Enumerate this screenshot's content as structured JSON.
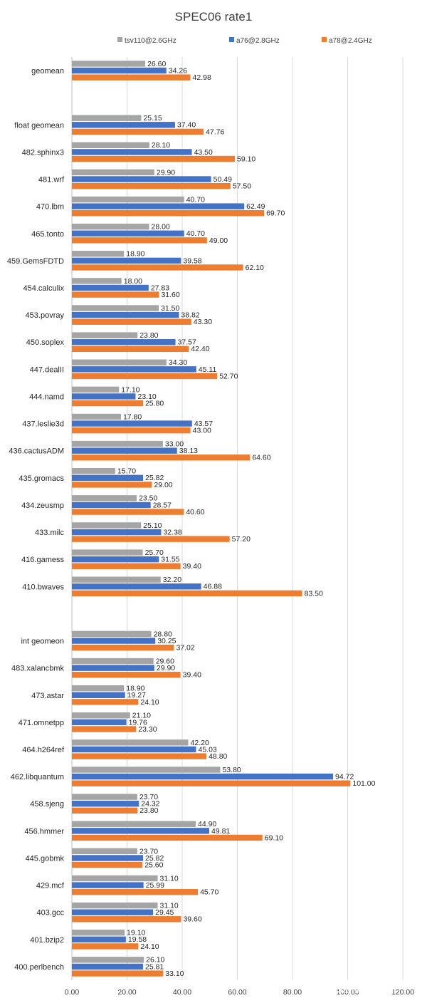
{
  "chart_data": {
    "type": "bar",
    "orientation": "horizontal",
    "title": "SPEC06 rate1",
    "xlim": [
      0,
      120
    ],
    "xticks": [
      "0.00",
      "20.00",
      "40.00",
      "60.00",
      "80.00",
      "100.00",
      "120.00"
    ],
    "legend_position": "top",
    "grid": true,
    "series": [
      {
        "name": "tsv110@2.6GHz",
        "color": "#a5a5a5"
      },
      {
        "name": "a76@2.8GHz",
        "color": "#4472c4"
      },
      {
        "name": "a78@2.4GHz",
        "color": "#ed7d31"
      }
    ],
    "categories": [
      {
        "name": "geomean",
        "values": [
          "26.60",
          "34.26",
          "42.98"
        ]
      },
      {
        "name": "",
        "values": []
      },
      {
        "name": "float geomean",
        "values": [
          "25.15",
          "37.40",
          "47.76"
        ]
      },
      {
        "name": "482.sphinx3",
        "values": [
          "28.10",
          "43.50",
          "59.10"
        ]
      },
      {
        "name": "481.wrf",
        "values": [
          "29.90",
          "50.49",
          "57.50"
        ]
      },
      {
        "name": "470.lbm",
        "values": [
          "40.70",
          "62.49",
          "69.70"
        ]
      },
      {
        "name": "465.tonto",
        "values": [
          "28.00",
          "40.70",
          "49.00"
        ]
      },
      {
        "name": "459.GemsFDTD",
        "values": [
          "18.90",
          "39.58",
          "62.10"
        ]
      },
      {
        "name": "454.calculix",
        "values": [
          "18.00",
          "27.83",
          "31.60"
        ]
      },
      {
        "name": "453.povray",
        "values": [
          "31.50",
          "38.82",
          "43.30"
        ]
      },
      {
        "name": "450.soplex",
        "values": [
          "23.80",
          "37.57",
          "42.40"
        ]
      },
      {
        "name": "447.dealII",
        "values": [
          "34.30",
          "45.11",
          "52.70"
        ]
      },
      {
        "name": "444.namd",
        "values": [
          "17.10",
          "23.10",
          "25.80"
        ]
      },
      {
        "name": "437.leslie3d",
        "values": [
          "17.80",
          "43.57",
          "43.00"
        ]
      },
      {
        "name": "436.cactusADM",
        "values": [
          "33.00",
          "38.13",
          "64.60"
        ]
      },
      {
        "name": "435.gromacs",
        "values": [
          "15.70",
          "25.82",
          "29.00"
        ]
      },
      {
        "name": "434.zeusmp",
        "values": [
          "23.50",
          "28.57",
          "40.60"
        ]
      },
      {
        "name": "433.milc",
        "values": [
          "25.10",
          "32.38",
          "57.20"
        ]
      },
      {
        "name": "416.gamess",
        "values": [
          "25.70",
          "31.55",
          "39.40"
        ]
      },
      {
        "name": "410.bwaves",
        "values": [
          "32.20",
          "46.88",
          "83.50"
        ]
      },
      {
        "name": "",
        "values": []
      },
      {
        "name": "int geomeon",
        "values": [
          "28.80",
          "30.25",
          "37.02"
        ]
      },
      {
        "name": "483.xalancbmk",
        "values": [
          "29.60",
          "29.90",
          "39.40"
        ]
      },
      {
        "name": "473.astar",
        "values": [
          "18.90",
          "19.27",
          "24.10"
        ]
      },
      {
        "name": "471.omnetpp",
        "values": [
          "21.10",
          "19.76",
          "23.30"
        ]
      },
      {
        "name": "464.h264ref",
        "values": [
          "42.20",
          "45.03",
          "48.80"
        ]
      },
      {
        "name": "462.libquantum",
        "values": [
          "53.80",
          "94.72",
          "101.00"
        ]
      },
      {
        "name": "458.sjeng",
        "values": [
          "23.70",
          "24.32",
          "23.80"
        ]
      },
      {
        "name": "456.hmmer",
        "values": [
          "44.90",
          "49.81",
          "69.10"
        ]
      },
      {
        "name": "445.gobmk",
        "values": [
          "23.70",
          "25.82",
          "25.60"
        ]
      },
      {
        "name": "429.mcf",
        "values": [
          "31.10",
          "25.99",
          "45.70"
        ]
      },
      {
        "name": "403.gcc",
        "values": [
          "31.10",
          "29.45",
          "39.60"
        ]
      },
      {
        "name": "401.bzip2",
        "values": [
          "19.10",
          "19.58",
          "24.10"
        ]
      },
      {
        "name": "400.perlbench",
        "values": [
          "26.10",
          "25.81",
          "33.10"
        ]
      }
    ]
  },
  "watermark": "知乎 @JamesAslan"
}
